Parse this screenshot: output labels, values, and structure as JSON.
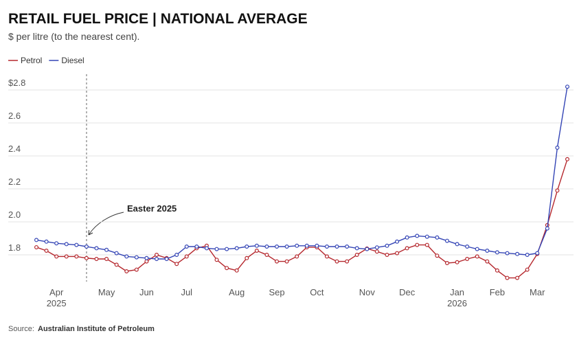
{
  "chart_data": {
    "type": "line",
    "title": "RETAIL FUEL PRICE | NATIONAL AVERAGE",
    "subtitle": "$ per litre (to the nearest cent).",
    "annotation": "Easter 2025",
    "source_label": "Source:",
    "source": "Australian Institute of Petroleum",
    "categories": [
      null,
      null,
      "Apr",
      null,
      null,
      null,
      null,
      "May",
      null,
      null,
      null,
      "Jun",
      null,
      null,
      null,
      "Jul",
      null,
      null,
      null,
      null,
      "Aug",
      null,
      null,
      null,
      "Sep",
      null,
      null,
      null,
      "Oct",
      null,
      null,
      null,
      null,
      "Nov",
      null,
      null,
      null,
      "Dec",
      null,
      null,
      null,
      null,
      "Jan",
      null,
      null,
      null,
      "Feb",
      null,
      null,
      null,
      "Mar",
      null,
      null,
      null
    ],
    "category_years": [
      null,
      null,
      "2025",
      null,
      null,
      null,
      null,
      null,
      null,
      null,
      null,
      null,
      null,
      null,
      null,
      null,
      null,
      null,
      null,
      null,
      null,
      null,
      null,
      null,
      null,
      null,
      null,
      null,
      null,
      null,
      null,
      null,
      null,
      null,
      null,
      null,
      null,
      null,
      null,
      null,
      null,
      null,
      "2026",
      null,
      null,
      null,
      null,
      null,
      null,
      null,
      null,
      null,
      null,
      null
    ],
    "series": [
      {
        "name": "Petrol",
        "color": "#b5272d",
        "values": [
          1.846,
          1.825,
          1.79,
          1.79,
          1.79,
          1.78,
          1.775,
          1.775,
          1.74,
          1.7,
          1.71,
          1.76,
          1.8,
          1.78,
          1.745,
          1.79,
          1.84,
          1.855,
          1.77,
          1.72,
          1.705,
          1.78,
          1.825,
          1.8,
          1.76,
          1.76,
          1.79,
          1.846,
          1.846,
          1.79,
          1.76,
          1.76,
          1.8,
          1.838,
          1.82,
          1.8,
          1.81,
          1.84,
          1.86,
          1.86,
          1.795,
          1.75,
          1.755,
          1.775,
          1.79,
          1.76,
          1.705,
          1.66,
          1.66,
          1.71,
          1.805,
          1.98,
          2.19,
          2.38
        ]
      },
      {
        "name": "Diesel",
        "color": "#3344b5",
        "values": [
          1.89,
          1.88,
          1.87,
          1.865,
          1.86,
          1.85,
          1.84,
          1.83,
          1.81,
          1.79,
          1.785,
          1.78,
          1.775,
          1.775,
          1.8,
          1.85,
          1.85,
          1.84,
          1.835,
          1.835,
          1.84,
          1.85,
          1.855,
          1.85,
          1.85,
          1.85,
          1.855,
          1.855,
          1.855,
          1.85,
          1.85,
          1.85,
          1.84,
          1.835,
          1.845,
          1.855,
          1.88,
          1.905,
          1.915,
          1.91,
          1.905,
          1.885,
          1.865,
          1.85,
          1.835,
          1.825,
          1.815,
          1.81,
          1.805,
          1.8,
          1.81,
          1.96,
          2.45,
          2.82
        ]
      }
    ],
    "ylim": [
      1.64,
      2.9
    ],
    "yticks": [
      1.8,
      {
        "value": 2,
        "label": "2.0"
      },
      2.2,
      2.4,
      2.6,
      {
        "value": 2.8,
        "label": "$2.8"
      }
    ],
    "grid": true,
    "legend": "top-left"
  }
}
